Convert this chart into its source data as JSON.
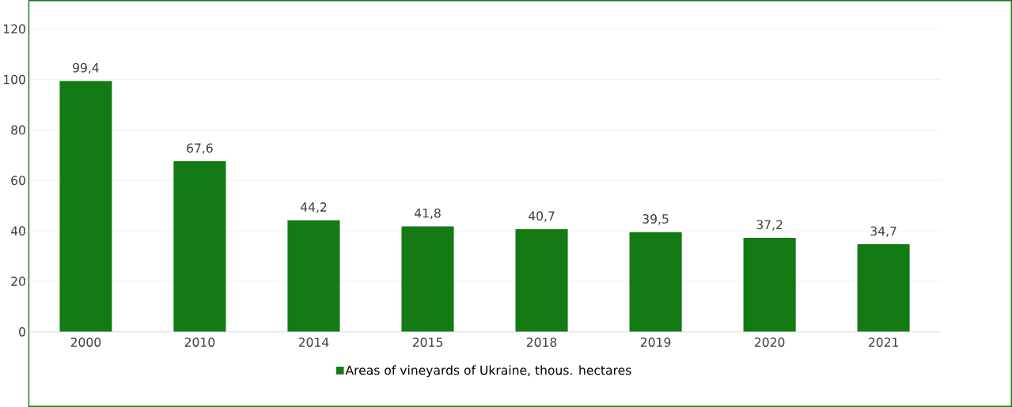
{
  "chart_data": {
    "type": "bar",
    "categories": [
      "2000",
      "2010",
      "2014",
      "2015",
      "2018",
      "2019",
      "2020",
      "2021"
    ],
    "series": [
      {
        "name": "Areas of vineyards of Ukraine, thous. hectares",
        "color": "#147a14",
        "values": [
          99.4,
          67.6,
          44.2,
          41.8,
          40.7,
          39.5,
          37.2,
          34.7
        ],
        "value_labels": [
          "99,4",
          "67,6",
          "44,2",
          "41,8",
          "40,7",
          "39,5",
          "37,2",
          "34,7"
        ]
      }
    ],
    "ylim": [
      0,
      120
    ],
    "yticks": [
      0,
      20,
      40,
      60,
      80,
      100,
      120
    ],
    "grid": "y",
    "legend": "bottom"
  }
}
